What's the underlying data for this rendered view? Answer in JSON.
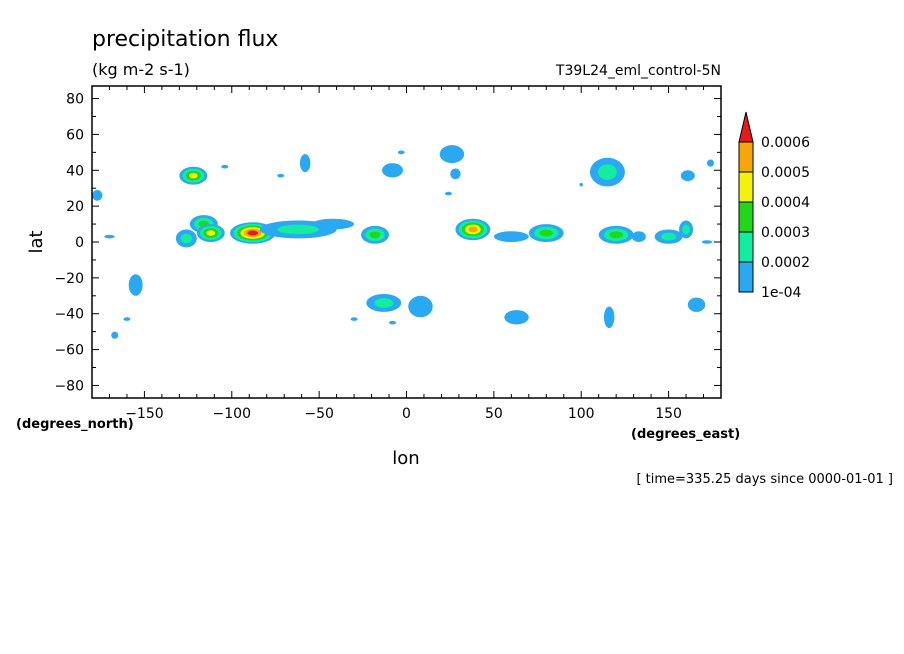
{
  "chart_data": {
    "type": "heatmap",
    "title": "precipitation flux",
    "subtitle": "(kg m-2 s-1)",
    "dataset_label": "T39L24_eml_control-5N",
    "xlabel": "lon",
    "ylabel": "lat",
    "x_units": "(degrees_east)",
    "y_units": "(degrees_north)",
    "footer": "[ time=335.25 days since 0000-01-01 ]",
    "xlim": [
      -180,
      180
    ],
    "ylim": [
      -87,
      87
    ],
    "x_ticks": [
      -150,
      -100,
      -50,
      0,
      50,
      100,
      150
    ],
    "y_ticks": [
      80,
      60,
      40,
      20,
      0,
      -20,
      -40,
      -60,
      -80
    ],
    "grid": false,
    "legend_position": "right",
    "colorbar": {
      "levels": [
        "1e-04",
        "0.0002",
        "0.0003",
        "0.0004",
        "0.0005",
        "0.0006"
      ],
      "colors": [
        "#2aa9f2",
        "#12eda0",
        "#22d61a",
        "#f2f20c",
        "#f7a60a",
        "#e21c1c"
      ]
    },
    "cells": [
      {
        "lon": -177,
        "lat": 26,
        "rx": 3,
        "ry": 3,
        "level": 1
      },
      {
        "lon": -155,
        "lat": -24,
        "rx": 4,
        "ry": 6,
        "level": 1
      },
      {
        "lon": -160,
        "lat": -43,
        "rx": 2,
        "ry": 1,
        "level": 1
      },
      {
        "lon": -167,
        "lat": -52,
        "rx": 2,
        "ry": 2,
        "level": 1
      },
      {
        "lon": -170,
        "lat": 3,
        "rx": 3,
        "ry": 1,
        "level": 1
      },
      {
        "lon": -122,
        "lat": 37,
        "rx": 8,
        "ry": 5,
        "level": 4
      },
      {
        "lon": -104,
        "lat": 42,
        "rx": 2,
        "ry": 1,
        "level": 1
      },
      {
        "lon": -116,
        "lat": 10,
        "rx": 8,
        "ry": 5,
        "level": 3
      },
      {
        "lon": -112,
        "lat": 5,
        "rx": 8,
        "ry": 5,
        "level": 4
      },
      {
        "lon": -126,
        "lat": 2,
        "rx": 6,
        "ry": 5,
        "level": 2
      },
      {
        "lon": -88,
        "lat": 5,
        "rx": 13,
        "ry": 6,
        "level": 6
      },
      {
        "lon": -62,
        "lat": 7,
        "rx": 22,
        "ry": 5,
        "level": 2
      },
      {
        "lon": -42,
        "lat": 10,
        "rx": 12,
        "ry": 3,
        "level": 1
      },
      {
        "lon": -58,
        "lat": 44,
        "rx": 3,
        "ry": 5,
        "level": 1
      },
      {
        "lon": -72,
        "lat": 37,
        "rx": 2,
        "ry": 1,
        "level": 1
      },
      {
        "lon": -18,
        "lat": 4,
        "rx": 8,
        "ry": 5,
        "level": 3
      },
      {
        "lon": -8,
        "lat": 40,
        "rx": 6,
        "ry": 4,
        "level": 1
      },
      {
        "lon": -3,
        "lat": 50,
        "rx": 2,
        "ry": 1,
        "level": 1
      },
      {
        "lon": 26,
        "lat": 49,
        "rx": 7,
        "ry": 5,
        "level": 1
      },
      {
        "lon": 28,
        "lat": 38,
        "rx": 3,
        "ry": 3,
        "level": 1
      },
      {
        "lon": 24,
        "lat": 27,
        "rx": 2,
        "ry": 1,
        "level": 1
      },
      {
        "lon": -13,
        "lat": -34,
        "rx": 10,
        "ry": 5,
        "level": 2
      },
      {
        "lon": 8,
        "lat": -36,
        "rx": 7,
        "ry": 6,
        "level": 1
      },
      {
        "lon": -8,
        "lat": -45,
        "rx": 2,
        "ry": 1,
        "level": 1
      },
      {
        "lon": -30,
        "lat": -43,
        "rx": 2,
        "ry": 1,
        "level": 1
      },
      {
        "lon": 38,
        "lat": 7,
        "rx": 10,
        "ry": 6,
        "level": 5
      },
      {
        "lon": 60,
        "lat": 3,
        "rx": 10,
        "ry": 3,
        "level": 1
      },
      {
        "lon": 80,
        "lat": 5,
        "rx": 10,
        "ry": 5,
        "level": 3
      },
      {
        "lon": 63,
        "lat": -42,
        "rx": 7,
        "ry": 4,
        "level": 1
      },
      {
        "lon": 115,
        "lat": 39,
        "rx": 10,
        "ry": 8,
        "level": 2
      },
      {
        "lon": 120,
        "lat": 4,
        "rx": 10,
        "ry": 5,
        "level": 3
      },
      {
        "lon": 133,
        "lat": 3,
        "rx": 4,
        "ry": 3,
        "level": 1
      },
      {
        "lon": 150,
        "lat": 3,
        "rx": 8,
        "ry": 4,
        "level": 2
      },
      {
        "lon": 160,
        "lat": 7,
        "rx": 4,
        "ry": 5,
        "level": 2
      },
      {
        "lon": 161,
        "lat": 37,
        "rx": 4,
        "ry": 3,
        "level": 1
      },
      {
        "lon": 174,
        "lat": 44,
        "rx": 2,
        "ry": 2,
        "level": 1
      },
      {
        "lon": 116,
        "lat": -42,
        "rx": 3,
        "ry": 6,
        "level": 1
      },
      {
        "lon": 166,
        "lat": -35,
        "rx": 5,
        "ry": 4,
        "level": 1
      },
      {
        "lon": 172,
        "lat": 0,
        "rx": 3,
        "ry": 1,
        "level": 1
      },
      {
        "lon": 100,
        "lat": 32,
        "rx": 1,
        "ry": 1,
        "level": 1
      }
    ]
  }
}
